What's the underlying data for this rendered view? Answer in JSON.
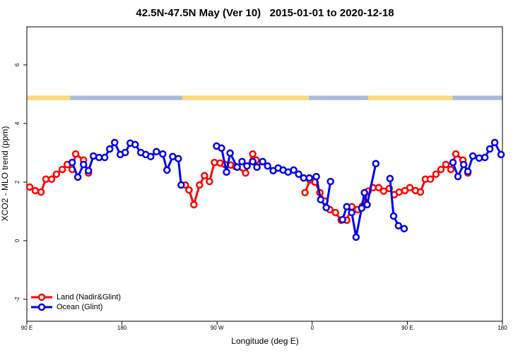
{
  "chart_data": {
    "type": "line",
    "title": "42.5N-47.5N May (Ver 10)   2015-01-01 to 2020-12-18",
    "x_label": "Longitude (deg E)",
    "y_label": "XCO2 - MLO trend (ppm)",
    "xlim": [
      90,
      540
    ],
    "xticks": [
      {
        "value": 90,
        "label": "90 E"
      },
      {
        "value": 180,
        "label": "180"
      },
      {
        "value": 270,
        "label": "90 W"
      },
      {
        "value": 360,
        "label": "0"
      },
      {
        "value": 450,
        "label": "90 E"
      },
      {
        "value": 540,
        "label": "180"
      }
    ],
    "ylim": [
      -2.75,
      7.3
    ],
    "yticks": [
      -2,
      0,
      2,
      4,
      6
    ],
    "legend": "bottom-left",
    "land_strip": {
      "ylim": [
        4.8,
        4.95
      ],
      "land_color": "#fcd97e",
      "ocean_color": "#a9bbd9",
      "land": [
        [
          90,
          131
        ],
        [
          237,
          357
        ],
        [
          413,
          493
        ]
      ]
    },
    "series": [
      {
        "name": "Land (Nadir&Glint)",
        "color": "#ff0000",
        "x": [
          92.7,
          98,
          103.4,
          108,
          113.4,
          118,
          123.5,
          128.2,
          132.9,
          136.2,
          143.6,
          148.3,
          null,
          240,
          243.4,
          248,
          253.4,
          258.1,
          262.8,
          267.5,
          272.9,
          277.5,
          282.9,
          287.6,
          297,
          303.7,
          307,
          null,
          353.2,
          357.9,
          362.6,
          367.3,
          372,
          376.7,
          382,
          387.4,
          392.7,
          397.4,
          402.8,
          407.5,
          412.8,
          417.5,
          422.9,
          427.6,
          432.9,
          437.6,
          442.3,
          447.7,
          452.4,
          457.7,
          462.4,
          467.1,
          471.8,
          477.1,
          481.8,
          486.5,
          491.2,
          495.9,
          502.6,
          507.3
        ],
        "values": [
          1.83,
          1.71,
          1.66,
          2.1,
          2.1,
          2.27,
          2.43,
          2.6,
          2.43,
          2.96,
          2.75,
          2.31,
          null,
          1.9,
          1.73,
          1.23,
          1.9,
          2.22,
          2.02,
          2.67,
          2.65,
          2.6,
          2.58,
          2.53,
          2.31,
          2.96,
          2.75,
          null,
          1.64,
          2.07,
          2.0,
          1.64,
          1.35,
          1.06,
          0.96,
          0.7,
          0.7,
          1.16,
          1.06,
          1.18,
          1.69,
          1.81,
          1.81,
          1.69,
          1.78,
          1.57,
          1.66,
          1.71,
          1.81,
          1.71,
          1.66,
          2.1,
          2.1,
          2.27,
          2.43,
          2.6,
          2.43,
          2.96,
          2.75,
          2.31
        ]
      },
      {
        "name": "Ocean (Glint)",
        "color": "#0000ee",
        "x": [
          132.9,
          138.2,
          143.6,
          148.3,
          153,
          158.3,
          163.7,
          168.4,
          173.1,
          178.4,
          183.1,
          187.8,
          192.5,
          197.8,
          202.5,
          207.2,
          212.6,
          218.6,
          222.6,
          228,
          233.3,
          236,
          null,
          269.5,
          274.2,
          278.9,
          282.3,
          289,
          293.6,
          298.3,
          303.7,
          307.7,
          313.1,
          317.8,
          323.1,
          327.8,
          332.5,
          337.2,
          342.5,
          347.2,
          351.9,
          357.3,
          363.9,
          368,
          373.3,
          377.3,
          null,
          388.7,
          392.7,
          397.4,
          401.5,
          406.8,
          409.4,
          412,
          420.2,
          null,
          433.6,
          437,
          441.6,
          447,
          null,
          493.2,
          497.9,
          503.3,
          507.3,
          512,
          518,
          523.4,
          528,
          532.7,
          538.7
        ],
        "values": [
          2.67,
          2.17,
          2.6,
          2.39,
          2.89,
          2.84,
          2.84,
          3.13,
          3.35,
          2.94,
          3.01,
          3.33,
          3.28,
          3.01,
          2.94,
          2.87,
          3.04,
          2.96,
          2.41,
          2.87,
          2.8,
          1.9,
          null,
          3.23,
          3.16,
          2.34,
          2.99,
          2.51,
          2.7,
          2.55,
          2.7,
          2.51,
          2.7,
          2.55,
          2.39,
          2.48,
          2.41,
          2.34,
          2.41,
          2.27,
          2.14,
          2.14,
          2.19,
          1.4,
          1.13,
          2.02,
          null,
          0.72,
          1.16,
          0.96,
          0.12,
          1.11,
          1.64,
          1.23,
          2.63,
          null,
          2.12,
          0.84,
          0.51,
          0.41,
          null,
          2.67,
          2.19,
          2.6,
          2.36,
          2.89,
          2.82,
          2.84,
          3.13,
          3.35,
          2.94
        ]
      }
    ]
  }
}
